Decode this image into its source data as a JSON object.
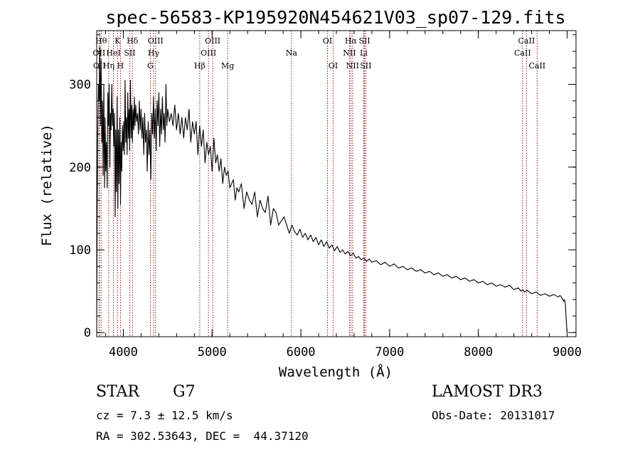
{
  "chart_data": {
    "type": "line",
    "title": "spec-56583-KP195920N454621V03_sp07-129.fits",
    "xlabel": "Wavelength (Å)",
    "ylabel": "Flux (relative)",
    "xlim": [
      3700,
      9100
    ],
    "ylim": [
      -5,
      365
    ],
    "x_ticks": [
      4000,
      5000,
      6000,
      7000,
      8000,
      9000
    ],
    "y_ticks": [
      0,
      100,
      200,
      300
    ],
    "x_minor_step": 200,
    "y_minor_step": 20,
    "series": [
      {
        "name": "flux",
        "x": [
          3700,
          3705,
          3712,
          3720,
          3728,
          3735,
          3742,
          3750,
          3758,
          3765,
          3772,
          3780,
          3788,
          3795,
          3802,
          3810,
          3818,
          3825,
          3832,
          3840,
          3848,
          3855,
          3862,
          3870,
          3878,
          3885,
          3892,
          3900,
          3908,
          3915,
          3922,
          3930,
          3938,
          3945,
          3952,
          3960,
          3968,
          3975,
          3982,
          3990,
          3998,
          4005,
          4012,
          4020,
          4028,
          4035,
          4042,
          4050,
          4058,
          4065,
          4072,
          4080,
          4088,
          4095,
          4102,
          4110,
          4118,
          4125,
          4132,
          4140,
          4150,
          4160,
          4170,
          4180,
          4190,
          4200,
          4210,
          4220,
          4230,
          4240,
          4250,
          4260,
          4270,
          4280,
          4290,
          4300,
          4310,
          4320,
          4330,
          4340,
          4350,
          4360,
          4370,
          4380,
          4390,
          4400,
          4410,
          4420,
          4430,
          4440,
          4450,
          4460,
          4470,
          4480,
          4490,
          4500,
          4520,
          4540,
          4560,
          4580,
          4600,
          4620,
          4640,
          4660,
          4680,
          4700,
          4720,
          4740,
          4760,
          4780,
          4800,
          4820,
          4840,
          4860,
          4880,
          4900,
          4920,
          4940,
          4960,
          4980,
          5000,
          5020,
          5040,
          5060,
          5080,
          5100,
          5120,
          5140,
          5160,
          5180,
          5200,
          5220,
          5240,
          5260,
          5280,
          5300,
          5330,
          5360,
          5390,
          5420,
          5450,
          5480,
          5510,
          5540,
          5570,
          5600,
          5630,
          5660,
          5690,
          5720,
          5750,
          5780,
          5810,
          5840,
          5870,
          5900,
          5930,
          5960,
          5990,
          6020,
          6050,
          6080,
          6110,
          6140,
          6170,
          6200,
          6230,
          6260,
          6290,
          6320,
          6350,
          6380,
          6410,
          6440,
          6470,
          6500,
          6530,
          6560,
          6590,
          6620,
          6650,
          6680,
          6710,
          6740,
          6770,
          6800,
          6850,
          6900,
          6950,
          7000,
          7050,
          7100,
          7150,
          7200,
          7250,
          7300,
          7350,
          7400,
          7450,
          7500,
          7550,
          7600,
          7650,
          7700,
          7750,
          7800,
          7850,
          7900,
          7950,
          8000,
          8050,
          8100,
          8150,
          8200,
          8250,
          8300,
          8350,
          8400,
          8450,
          8480,
          8500,
          8520,
          8550,
          8600,
          8650,
          8700,
          8750,
          8800,
          8850,
          8900,
          8920,
          8940,
          8960,
          8970,
          8980,
          8990,
          9000
        ],
        "y": [
          0,
          135,
          245,
          300,
          280,
          345,
          250,
          330,
          230,
          280,
          190,
          300,
          175,
          260,
          195,
          230,
          175,
          290,
          250,
          300,
          200,
          265,
          245,
          300,
          250,
          270,
          225,
          265,
          140,
          245,
          170,
          285,
          150,
          245,
          180,
          260,
          155,
          230,
          195,
          250,
          220,
          255,
          215,
          305,
          230,
          260,
          215,
          290,
          235,
          270,
          220,
          305,
          235,
          275,
          230,
          270,
          245,
          285,
          250,
          275,
          255,
          265,
          240,
          280,
          245,
          270,
          235,
          260,
          215,
          265,
          230,
          245,
          195,
          255,
          215,
          245,
          185,
          265,
          240,
          285,
          235,
          270,
          220,
          280,
          250,
          290,
          225,
          270,
          240,
          285,
          245,
          265,
          230,
          300,
          250,
          270,
          255,
          265,
          250,
          275,
          245,
          265,
          240,
          260,
          235,
          260,
          245,
          270,
          230,
          255,
          240,
          255,
          215,
          250,
          225,
          245,
          205,
          230,
          215,
          225,
          195,
          235,
          205,
          215,
          195,
          210,
          180,
          200,
          190,
          195,
          175,
          180,
          185,
          160,
          175,
          170,
          180,
          150,
          170,
          160,
          155,
          170,
          140,
          160,
          150,
          145,
          165,
          130,
          150,
          145,
          130,
          135,
          140,
          130,
          120,
          130,
          122,
          118,
          125,
          115,
          120,
          112,
          118,
          110,
          115,
          106,
          112,
          104,
          110,
          102,
          106,
          99,
          104,
          97,
          100,
          95,
          98,
          93,
          96,
          90,
          92,
          88,
          90,
          86,
          89,
          85,
          87,
          82,
          85,
          80,
          83,
          78,
          80,
          76,
          78,
          74,
          76,
          72,
          74,
          70,
          72,
          68,
          70,
          66,
          68,
          64,
          66,
          62,
          64,
          60,
          62,
          58,
          60,
          56,
          58,
          55,
          57,
          52,
          54,
          50,
          52,
          49,
          51,
          47,
          49,
          45,
          47,
          44,
          46,
          43,
          45,
          42,
          38,
          40,
          35,
          15,
          0
        ]
      }
    ],
    "lines": [
      {
        "name": "Hθ",
        "x": 3750,
        "row": 0
      },
      {
        "name": "OII",
        "x": 3727,
        "row": 1
      },
      {
        "name": "OII",
        "x": 3730,
        "row": 2
      },
      {
        "name": "Hη",
        "x": 3835,
        "row": 2
      },
      {
        "name": "HeI",
        "x": 3889,
        "row": 1
      },
      {
        "name": "K",
        "x": 3934,
        "row": 0
      },
      {
        "name": "H",
        "x": 3968,
        "row": 2
      },
      {
        "name": "SII",
        "x": 4072,
        "row": 1
      },
      {
        "name": "Hδ",
        "x": 4102,
        "row": 0
      },
      {
        "name": "OIII",
        "x": 4363,
        "row": 0
      },
      {
        "name": "Hγ",
        "x": 4341,
        "row": 1
      },
      {
        "name": "G",
        "x": 4305,
        "row": 2
      },
      {
        "name": "Hβ",
        "x": 4861,
        "row": 2
      },
      {
        "name": "OIII",
        "x": 5007,
        "row": 0
      },
      {
        "name": "OIII",
        "x": 4959,
        "row": 1
      },
      {
        "name": "Mg",
        "x": 5175,
        "row": 2
      },
      {
        "name": "Na",
        "x": 5894,
        "row": 1
      },
      {
        "name": "OI",
        "x": 6300,
        "row": 0
      },
      {
        "name": "OI",
        "x": 6364,
        "row": 2
      },
      {
        "name": "Hα",
        "x": 6563,
        "row": 0
      },
      {
        "name": "NII",
        "x": 6548,
        "row": 1
      },
      {
        "name": "NII",
        "x": 6583,
        "row": 2
      },
      {
        "name": "SII",
        "x": 6717,
        "row": 0
      },
      {
        "name": "Li",
        "x": 6708,
        "row": 1
      },
      {
        "name": "SII",
        "x": 6731,
        "row": 2
      },
      {
        "name": "CaII",
        "x": 8542,
        "row": 0
      },
      {
        "name": "CaII",
        "x": 8498,
        "row": 1
      },
      {
        "name": "CaII",
        "x": 8662,
        "row": 2
      }
    ],
    "line_color": "#8b0000"
  },
  "info": {
    "object_class": "STAR",
    "subclass": "G7",
    "survey": "LAMOST DR3",
    "cz": "cz = 7.3 ± 12.5 km/s",
    "obs_date": "Obs-Date: 20131017",
    "coords": "RA = 302.53643, DEC =  44.37120"
  }
}
